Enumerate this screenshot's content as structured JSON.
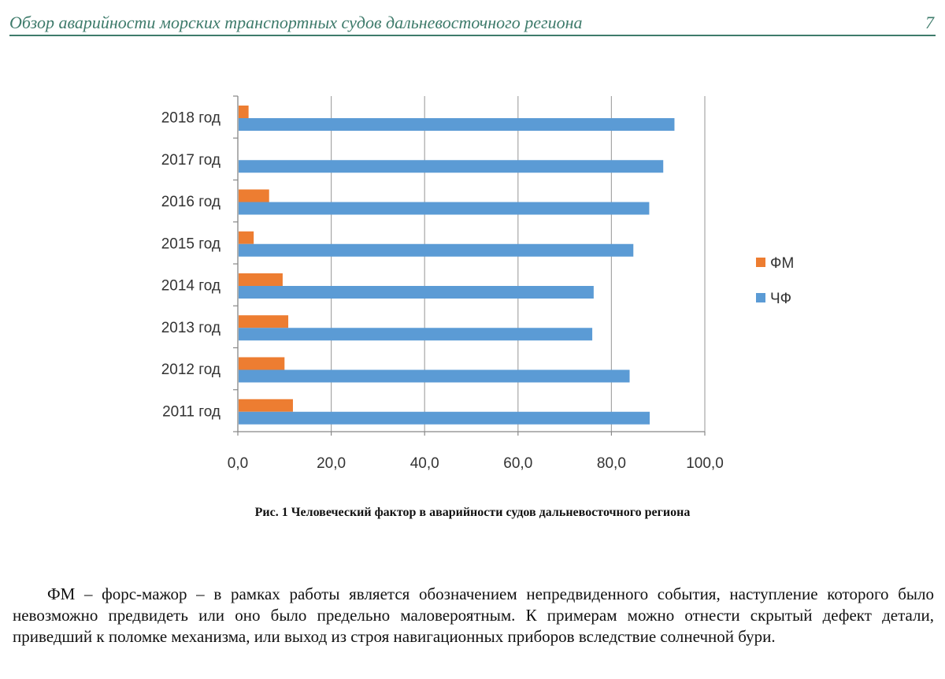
{
  "header": {
    "title": "Обзор аварийности морских транспортных судов дальневосточного региона",
    "page_number": "7"
  },
  "chart_data": {
    "type": "bar",
    "orientation": "horizontal",
    "categories": [
      "2018 год",
      "2017 год",
      "2016 год",
      "2015 год",
      "2014 год",
      "2013 год",
      "2012 год",
      "2011 год"
    ],
    "series": [
      {
        "name": "ФМ",
        "color": "#ed7d31",
        "values": [
          2.3,
          0,
          6.7,
          3.4,
          9.6,
          10.8,
          10.0,
          11.8
        ]
      },
      {
        "name": "ЧФ",
        "color": "#5b9bd5",
        "values": [
          93.5,
          91.1,
          88.1,
          84.7,
          76.2,
          75.9,
          83.9,
          88.2
        ]
      }
    ],
    "xlim": [
      0,
      100
    ],
    "xticks": [
      "0,0",
      "20,0",
      "40,0",
      "60,0",
      "80,0",
      "100,0"
    ],
    "xtick_values": [
      0,
      20,
      40,
      60,
      80,
      100
    ],
    "grid": true,
    "legend": "right",
    "title": "",
    "xlabel": "",
    "ylabel": ""
  },
  "caption": "Рис. 1 Человеческий фактор в аварийности судов дальневосточного региона",
  "paragraph": "ФМ – форс-мажор – в рамках работы является обозначением непредвиденного события, наступление которого было невозможно предвидеть или оно было предельно маловероятным. К примерам можно отнести скрытый дефект детали, приведший к поломке механизма, или выход из строя навигационных приборов вследствие солнечной бури."
}
